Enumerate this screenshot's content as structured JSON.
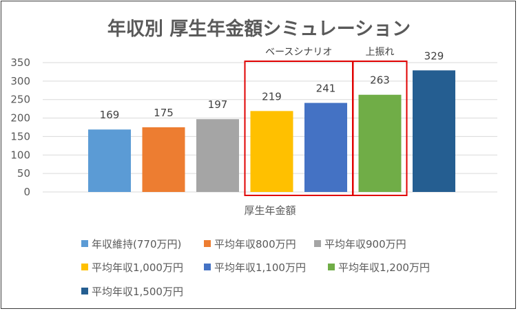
{
  "chart_data": {
    "type": "bar",
    "title": "年収別 厚生年金額シミュレーション",
    "xlabel": "厚生年金額",
    "ylabel": "",
    "ylim": [
      0,
      350
    ],
    "yticks": [
      0,
      50,
      100,
      150,
      200,
      250,
      300,
      350
    ],
    "grid": true,
    "legend_position": "bottom",
    "categories": [
      "厚生年金額"
    ],
    "series": [
      {
        "name": "年収維持(770万円)",
        "values": [
          169
        ],
        "color": "#5B9BD5"
      },
      {
        "name": "平均年収800万円",
        "values": [
          175
        ],
        "color": "#ED7D31"
      },
      {
        "name": "平均年収900万円",
        "values": [
          197
        ],
        "color": "#A5A5A5"
      },
      {
        "name": "平均年収1,000万円",
        "values": [
          219
        ],
        "color": "#FFC000"
      },
      {
        "name": "平均年収1,100万円",
        "values": [
          241
        ],
        "color": "#4472C4"
      },
      {
        "name": "平均年収1,200万円",
        "values": [
          263
        ],
        "color": "#70AD47"
      },
      {
        "name": "平均年収1,500万円",
        "values": [
          329
        ],
        "color": "#255E91"
      }
    ],
    "annotations": [
      {
        "text": "ベースシナリオ",
        "series_indices": [
          3,
          4
        ],
        "box_color": "#E00000"
      },
      {
        "text": "上振れ",
        "series_indices": [
          5
        ],
        "box_color": "#E00000"
      }
    ]
  }
}
